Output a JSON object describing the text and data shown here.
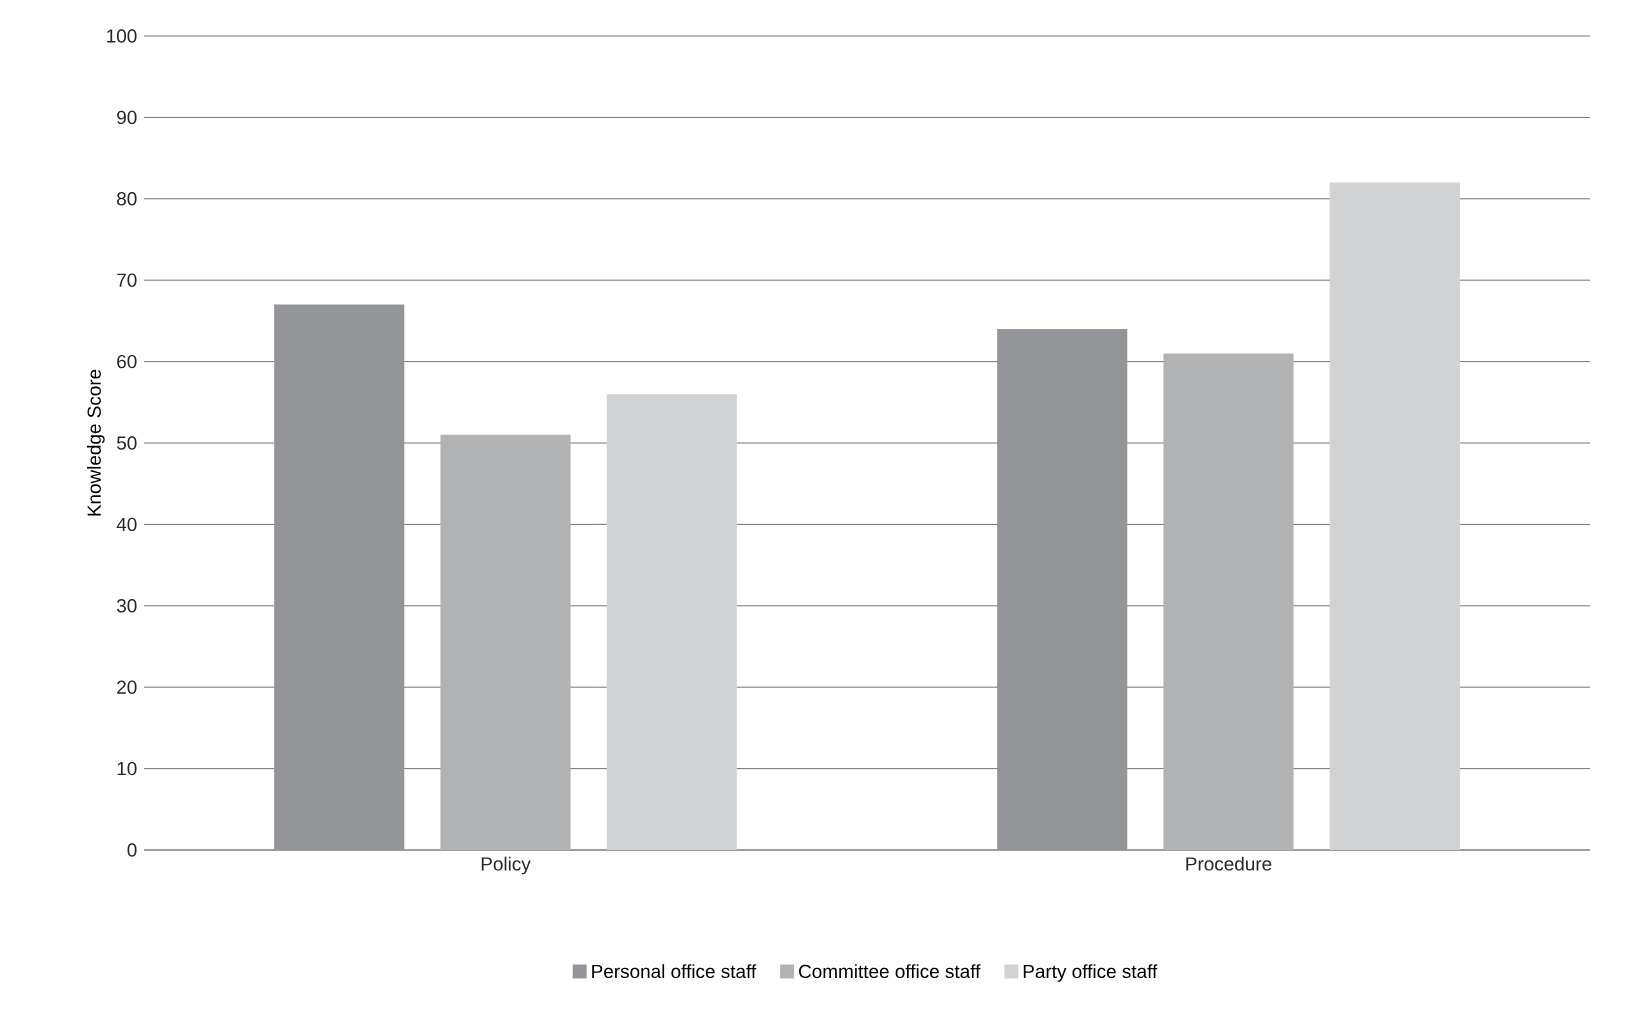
{
  "chart_data": {
    "type": "bar",
    "ylabel": "Knowledge Score",
    "categories": [
      "Policy",
      "Procedure"
    ],
    "series": [
      {
        "name": "Personal office staff",
        "color": "#939598",
        "values": [
          67,
          64
        ]
      },
      {
        "name": "Committee office staff",
        "color": "#b1b2b4",
        "values": [
          51,
          61
        ]
      },
      {
        "name": "Party office staff",
        "color": "#d1d2d4",
        "values": [
          56,
          82
        ]
      }
    ],
    "ylim": [
      0,
      100
    ],
    "yticks": [
      0,
      10,
      20,
      30,
      40,
      50,
      60,
      70,
      80,
      90,
      100
    ],
    "grid": "y",
    "legend": "bottom"
  }
}
